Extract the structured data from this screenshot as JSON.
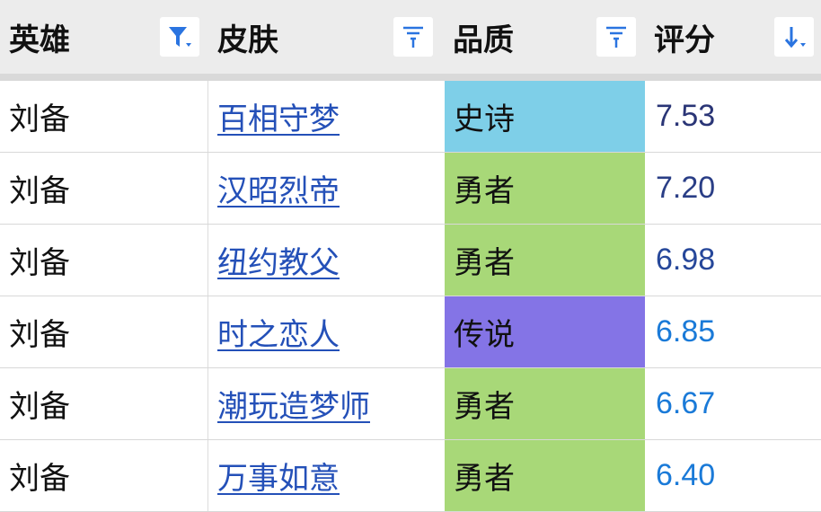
{
  "header": {
    "columns": [
      {
        "label": "英雄",
        "icon": "filter-active-icon"
      },
      {
        "label": "皮肤",
        "icon": "filter-icon"
      },
      {
        "label": "品质",
        "icon": "filter-icon"
      },
      {
        "label": "评分",
        "icon": "sort-descending-icon"
      }
    ]
  },
  "colors": {
    "史诗": "#7ecfe8",
    "勇者": "#a8d878",
    "传说": "#8474e6",
    "accent": "#2a74e0"
  },
  "rows": [
    {
      "hero": "刘备",
      "skin": "百相守梦",
      "quality": "史诗",
      "score": "7.53",
      "score_color": "#2a3576"
    },
    {
      "hero": "刘备",
      "skin": "汉昭烈帝",
      "quality": "勇者",
      "score": "7.20",
      "score_color": "#2a3e86"
    },
    {
      "hero": "刘备",
      "skin": "纽约教父",
      "quality": "勇者",
      "score": "6.98",
      "score_color": "#26479a"
    },
    {
      "hero": "刘备",
      "skin": "时之恋人",
      "quality": "传说",
      "score": "6.85",
      "score_color": "#1a7ad8"
    },
    {
      "hero": "刘备",
      "skin": "潮玩造梦师",
      "quality": "勇者",
      "score": "6.67",
      "score_color": "#1a7ad8"
    },
    {
      "hero": "刘备",
      "skin": "万事如意",
      "quality": "勇者",
      "score": "6.40",
      "score_color": "#1a7ad8"
    }
  ]
}
